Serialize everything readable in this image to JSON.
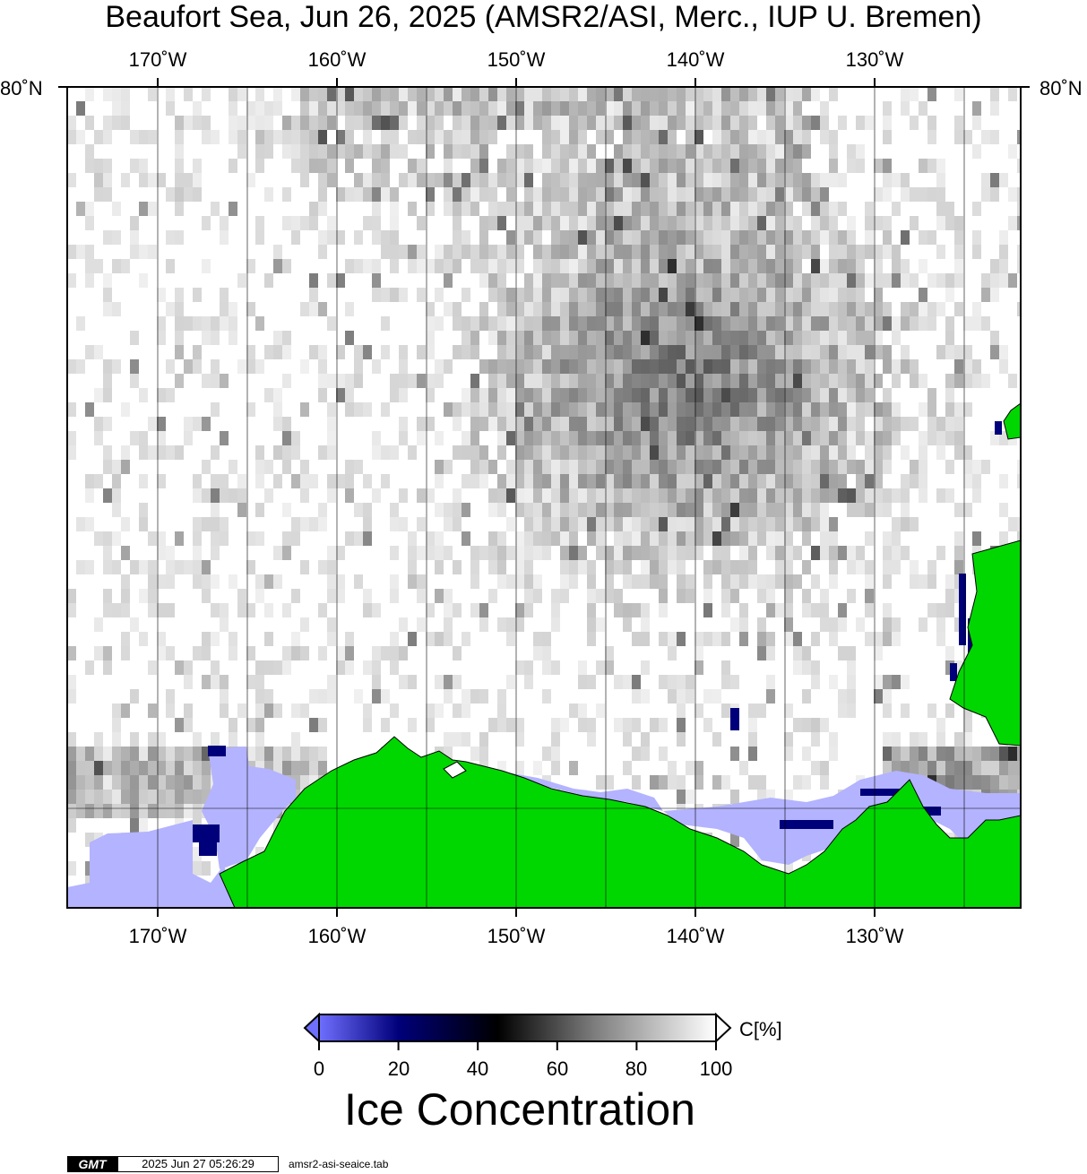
{
  "title": "Beaufort Sea, Jun 26, 2025 (AMSR2/ASI, Merc., IUP U. Bremen)",
  "map": {
    "longitude_labels": [
      "170˚W",
      "160˚W",
      "150˚W",
      "140˚W",
      "130˚W"
    ],
    "latitude_label_left": "80˚N",
    "latitude_label_right": "80˚N",
    "land_color": "#00d700",
    "open_water_color": "#b3b3ff",
    "coastline_color": "#000000"
  },
  "colorbar": {
    "ticks": [
      "0",
      "20",
      "40",
      "60",
      "80",
      "100"
    ],
    "unit": "C[%]",
    "title": "Ice Concentration",
    "colors": [
      "#6f6fff",
      "#00007a",
      "#000000",
      "#808080",
      "#ffffff"
    ]
  },
  "footer": {
    "logo": "GMT",
    "timestamp": "2025 Jun 27 05:26:29",
    "filename": "amsr2-asi-seaice.tab"
  }
}
